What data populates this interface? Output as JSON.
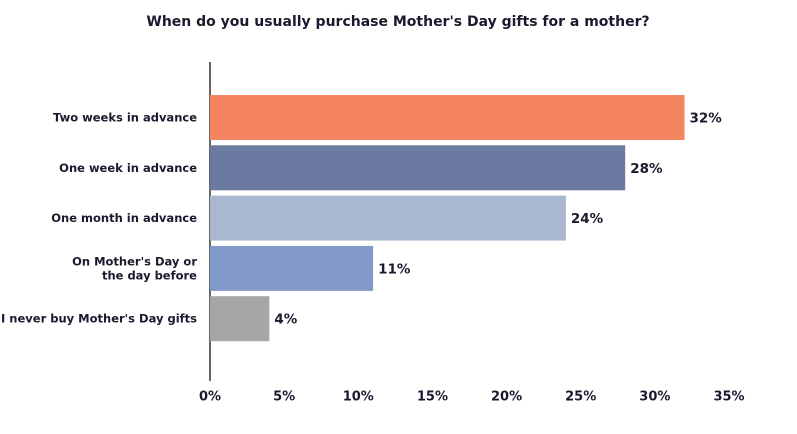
{
  "chart_data": {
    "type": "bar",
    "orientation": "horizontal",
    "title": "When do you usually purchase Mother's Day gifts for a mother?",
    "categories": [
      "Two weeks in advance",
      "One week in advance",
      "One month in advance",
      "On Mother's Day or\nthe day before",
      "I never buy Mother's Day gifts"
    ],
    "values": [
      32,
      28,
      24,
      11,
      4
    ],
    "value_labels": [
      "32%",
      "28%",
      "24%",
      "11%",
      "4%"
    ],
    "colors": [
      "#f58560",
      "#6a7aa1",
      "#a9b8d0",
      "#8199c8",
      "#a6a6a6"
    ],
    "xlim": [
      0,
      35
    ],
    "xticks": [
      {
        "value": 0,
        "label": "0%"
      },
      {
        "value": 5,
        "label": "5%"
      },
      {
        "value": 10,
        "label": "10%"
      },
      {
        "value": 15,
        "label": "15%"
      },
      {
        "value": 20,
        "label": "20%"
      },
      {
        "value": 25,
        "label": "25%"
      },
      {
        "value": 30,
        "label": "30%"
      },
      {
        "value": 35,
        "label": "35%"
      }
    ],
    "grid": false
  }
}
